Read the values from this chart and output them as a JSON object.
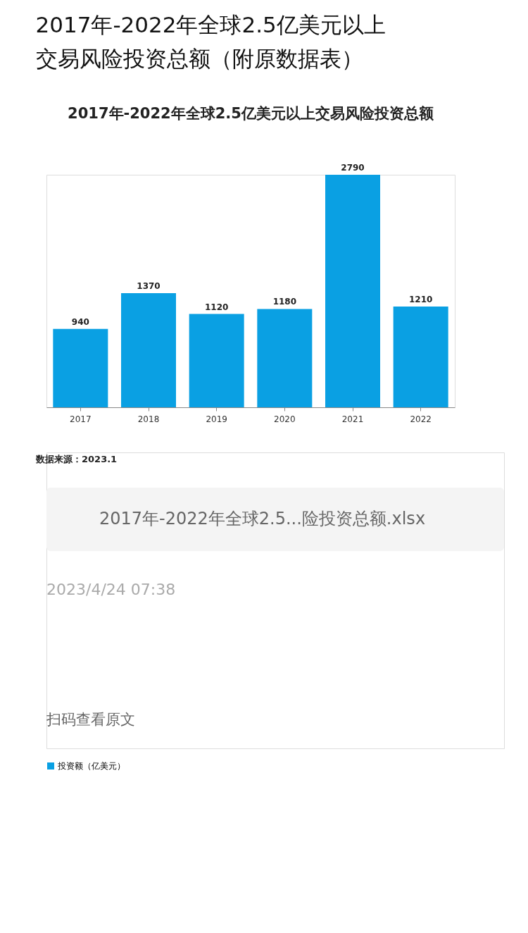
{
  "chart_data": {
    "type": "bar",
    "title": "2017年-2022年全球2.5亿美元以上交易风险投资总额（附原数据表）",
    "subtitle": "2017年-2022年全球2.5亿美元以上交易风险投资总额",
    "categories": [
      "2017",
      "2018",
      "2019",
      "2020",
      "2021",
      "2022"
    ],
    "series": [
      {
        "name": "投资额（亿美元）",
        "color": "#0aa0e3",
        "values": [
          940,
          1370,
          1120,
          1180,
          2790,
          1210
        ]
      }
    ],
    "data_labels": true,
    "legend": "bottom",
    "grid": false,
    "annotations": [
      "数据来源：2023.1",
      "2017年-2022年全球2.5...险投资总额.xlsx",
      "2023/4/24 07:38",
      "扫码查看原文"
    ]
  }
}
